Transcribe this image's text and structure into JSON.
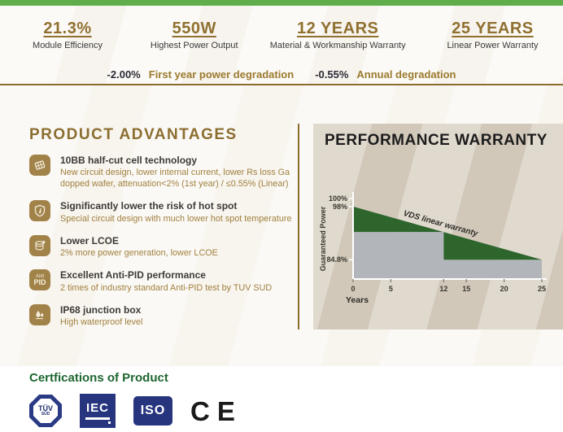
{
  "colors": {
    "top_bar_green": "#5fae4b",
    "gold": "#8c6e31",
    "gold_text": "#9b7a2e",
    "panel_beige": "#d5ccbe",
    "cert_green": "#1d6630",
    "logo_blue": "#27357f"
  },
  "stats": {
    "items": [
      {
        "value": "21.3%",
        "label": "Module Efficiency"
      },
      {
        "value": "550W",
        "label": "Highest Power Output"
      },
      {
        "value": "12 YEARS",
        "label": "Material & Workmanship Warranty"
      },
      {
        "value": "25 YEARS",
        "label": "Linear Power Warranty"
      }
    ]
  },
  "degradation": {
    "items": [
      {
        "value": "-2.00%",
        "label": "First year power degradation"
      },
      {
        "value": "-0.55%",
        "label": "Annual degradation"
      }
    ]
  },
  "advantages": {
    "heading": "PRODUCT ADVANTAGES",
    "items": [
      {
        "icon": "solar-cell-icon",
        "title": "10BB half-cut cell technology",
        "desc": "New circuit design, lower internal current, lower Rs loss Ga\ndopped wafer, attenuation<2% (1st year) / ≤0.55% (Linear)"
      },
      {
        "icon": "shield-thermometer-icon",
        "title": "Significantly lower the risk of hot spot",
        "desc": "Special circuit design with much lower hot spot temperature"
      },
      {
        "icon": "coins-icon",
        "title": "Lower LCOE",
        "desc": "2% more power generation, lower LCOE"
      },
      {
        "icon": "anti-pid-icon",
        "icon_text": {
          "line1": "Anti",
          "line2": "PID"
        },
        "title": "Excellent Anti-PID performance",
        "desc": "2 times of industry standard Anti-PID test by TUV SUD"
      },
      {
        "icon": "water-drop-icon",
        "title": "IP68 junction box",
        "desc": "High waterproof level"
      }
    ]
  },
  "performance": {
    "title": "PERFORMANCE WARRANTY"
  },
  "chart_data": {
    "type": "area",
    "title": "PERFORMANCE WARRANTY",
    "xlabel": "Years",
    "ylabel": "Guaranteed Power",
    "xlim": [
      0,
      25
    ],
    "ylim": [
      80,
      100
    ],
    "x_ticks": [
      0,
      5,
      12,
      15,
      20,
      25
    ],
    "y_ticks": [
      {
        "label": "100%",
        "value": 100
      },
      {
        "label": "98%",
        "value": 98
      },
      {
        "label": "84.8%",
        "value": 84.8
      }
    ],
    "linear": {
      "label": "VDS linear warranty",
      "from_year": 0,
      "start_pct": 98,
      "to_year": 25,
      "end_pct": 84.8
    },
    "step_levels": [
      {
        "from_year": 0,
        "to_year": 12,
        "pct": 91.7
      },
      {
        "from_year": 12,
        "to_year": 25,
        "pct": 84.8
      }
    ],
    "colors": {
      "line_fill": "#2d652c",
      "step_fill": "#b2b6ba",
      "axis": "#ffffff"
    },
    "legend": "none",
    "grid": false
  },
  "certifications": {
    "heading": "Certfications of Product",
    "logos": {
      "tuv_line1": "TÜV",
      "tuv_line2": "SÜD",
      "iec": "IEC",
      "iso": "ISO",
      "ce": "CE"
    }
  }
}
